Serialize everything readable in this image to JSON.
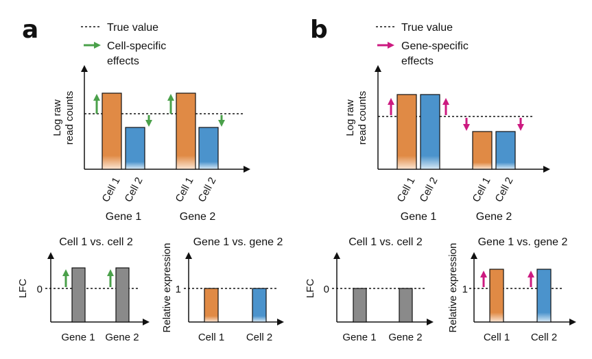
{
  "colors": {
    "orange": "#e08a45",
    "blue": "#4b93cc",
    "gray": "#8a8a8a",
    "green": "#4aa04a",
    "magenta": "#cc1a80",
    "axis": "#111111"
  },
  "panel_a": {
    "letter": "a",
    "legend": {
      "true_value": "True value",
      "effect_line1": "Cell-specific",
      "effect_line2": "effects"
    },
    "top": {
      "ylabel_line1": "Log raw",
      "ylabel_line2": "read counts",
      "genes": [
        {
          "name": "Gene 1",
          "cells": [
            "Cell 1",
            "Cell 2"
          ]
        },
        {
          "name": "Gene 2",
          "cells": [
            "Cell 1",
            "Cell 2"
          ]
        }
      ]
    },
    "bottom_left": {
      "title": "Cell 1 vs. cell 2",
      "ylabel": "LFC",
      "tick": "0",
      "xlabels": [
        "Gene 1",
        "Gene 2"
      ]
    },
    "bottom_right": {
      "title": "Gene 1 vs. gene 2",
      "ylabel": "Relative expression",
      "tick": "1",
      "xlabels": [
        "Cell 1",
        "Cell 2"
      ]
    }
  },
  "panel_b": {
    "letter": "b",
    "legend": {
      "true_value": "True value",
      "effect_line1": "Gene-specific",
      "effect_line2": "effects"
    },
    "top": {
      "ylabel_line1": "Log raw",
      "ylabel_line2": "read counts",
      "genes": [
        {
          "name": "Gene 1",
          "cells": [
            "Cell 1",
            "Cell 2"
          ]
        },
        {
          "name": "Gene 2",
          "cells": [
            "Cell 1",
            "Cell 2"
          ]
        }
      ]
    },
    "bottom_left": {
      "title": "Cell 1 vs. cell 2",
      "ylabel": "LFC",
      "tick": "0",
      "xlabels": [
        "Gene 1",
        "Gene 2"
      ]
    },
    "bottom_right": {
      "title": "Gene 1 vs. gene 2",
      "ylabel": "Relative expression",
      "tick": "1",
      "xlabels": [
        "Cell 1",
        "Cell 2"
      ]
    }
  }
}
